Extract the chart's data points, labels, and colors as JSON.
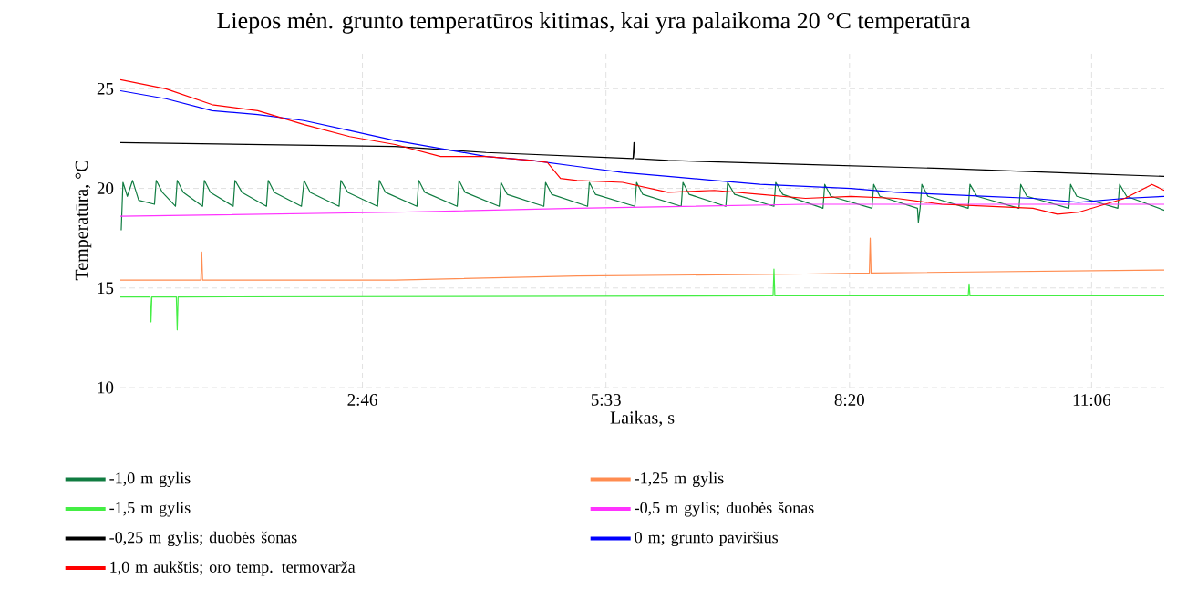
{
  "chart_data": {
    "type": "line",
    "title": "Liepos mėn. grunto temperatūros kitimas, kai yra palaikoma 20 °C temperatūra",
    "xlabel": "Laikas, s",
    "ylabel": "Temperatūra, °C",
    "xlim": [
      0,
      11.93
    ],
    "ylim": [
      10,
      26.8
    ],
    "xticks": [
      {
        "value": 2.7667,
        "label": "2:46"
      },
      {
        "value": 5.55,
        "label": "5:33"
      },
      {
        "value": 8.3333,
        "label": "8:20"
      },
      {
        "value": 11.1,
        "label": "11:06"
      }
    ],
    "yticks": [
      10,
      15,
      20,
      25
    ],
    "grid": true,
    "legend": "bottom",
    "series": [
      {
        "name": "-1,0 m gylis",
        "color": "#107c41",
        "x": [
          0.01,
          0.03,
          0.08,
          0.14,
          0.21,
          0.39,
          0.41,
          0.48,
          0.63,
          0.65,
          0.72,
          0.94,
          0.96,
          1.03,
          1.29,
          1.31,
          1.39,
          1.67,
          1.69,
          1.76,
          2.07,
          2.1,
          2.17,
          2.5,
          2.52,
          2.6,
          2.94,
          2.96,
          3.03,
          3.39,
          3.41,
          3.48,
          3.85,
          3.87,
          3.94,
          4.33,
          4.35,
          4.42,
          4.84,
          4.86,
          4.93,
          5.34,
          5.36,
          5.43,
          5.88,
          5.9,
          5.97,
          6.41,
          6.43,
          6.5,
          6.92,
          6.94,
          7.02,
          7.47,
          7.49,
          7.57,
          8.03,
          8.05,
          8.12,
          8.59,
          8.61,
          8.68,
          9.11,
          9.12,
          9.14,
          9.16,
          9.23,
          9.69,
          9.71,
          9.79,
          10.27,
          10.29,
          10.36,
          10.84,
          10.86,
          10.93,
          11.4,
          11.42,
          11.5,
          11.93
        ],
        "values": [
          17.9,
          20.3,
          19.6,
          20.4,
          19.4,
          19.2,
          20.4,
          19.8,
          19.1,
          20.4,
          19.8,
          19.1,
          20.4,
          19.8,
          19.1,
          20.4,
          19.8,
          19.1,
          20.4,
          19.8,
          19.1,
          20.4,
          19.8,
          19.1,
          20.4,
          19.8,
          19.1,
          20.4,
          19.8,
          19.1,
          20.4,
          19.8,
          19.1,
          20.4,
          19.8,
          19.1,
          20.3,
          19.7,
          19.1,
          20.3,
          19.7,
          19.1,
          20.3,
          19.7,
          19.1,
          20.3,
          19.7,
          19.1,
          20.3,
          19.7,
          19.1,
          20.3,
          19.7,
          19.1,
          20.3,
          19.7,
          19.0,
          20.2,
          19.6,
          19.0,
          20.2,
          19.6,
          19.0,
          18.3,
          19.0,
          20.2,
          19.6,
          19.0,
          20.2,
          19.6,
          19.0,
          20.2,
          19.6,
          19.0,
          20.2,
          19.6,
          19.0,
          20.2,
          19.6,
          18.9
        ]
      },
      {
        "name": "-1,25 m gylis",
        "color": "#ff8c50",
        "x": [
          0,
          0.92,
          0.93,
          0.94,
          3.14,
          5.22,
          7.83,
          8.56,
          8.57,
          8.58,
          11.93
        ],
        "values": [
          15.4,
          15.4,
          16.8,
          15.4,
          15.4,
          15.6,
          15.7,
          15.75,
          17.5,
          15.75,
          15.9
        ]
      },
      {
        "name": "-1,5 m gylis",
        "color": "#44ee44",
        "x": [
          0,
          0.34,
          0.35,
          0.36,
          0.64,
          0.65,
          0.66,
          7.46,
          7.47,
          7.48,
          9.69,
          9.7,
          9.71,
          11.93
        ],
        "values": [
          14.55,
          14.55,
          13.3,
          14.55,
          14.55,
          12.9,
          14.55,
          14.6,
          15.95,
          14.6,
          14.6,
          15.2,
          14.6,
          14.6
        ]
      },
      {
        "name": "-0,5 m gylis; duobės šonas",
        "color": "#ff33ff",
        "x": [
          0,
          3.14,
          5.22,
          7.83,
          11.93
        ],
        "values": [
          18.6,
          18.8,
          19.0,
          19.2,
          19.2
        ]
      },
      {
        "name": "-0,25 m gylis; duobės šonas",
        "color": "#000000",
        "x": [
          0,
          3.14,
          4.18,
          5.86,
          5.87,
          5.88,
          6.26,
          7.83,
          9.39,
          10.95,
          11.93
        ],
        "values": [
          22.3,
          22.1,
          21.8,
          21.5,
          22.3,
          21.5,
          21.4,
          21.2,
          21.0,
          20.75,
          20.6
        ]
      },
      {
        "name": "0 m; grunto paviršius",
        "color": "#0000ff",
        "x": [
          0,
          0.52,
          1.05,
          1.57,
          2.1,
          2.62,
          3.14,
          3.66,
          4.18,
          4.7,
          5.22,
          5.74,
          6.26,
          6.79,
          7.31,
          7.83,
          8.35,
          8.87,
          9.39,
          9.91,
          10.43,
          10.95,
          11.48,
          11.93
        ],
        "values": [
          24.9,
          24.5,
          23.9,
          23.7,
          23.4,
          22.9,
          22.4,
          22.0,
          21.6,
          21.4,
          21.1,
          20.8,
          20.6,
          20.4,
          20.2,
          20.1,
          20.0,
          19.8,
          19.7,
          19.6,
          19.5,
          19.3,
          19.5,
          19.6
        ]
      },
      {
        "name": "1,0 m aukštis; oro temp. termovarža",
        "color": "#ff0000",
        "x": [
          0,
          0.52,
          1.05,
          1.57,
          2.1,
          2.62,
          3.14,
          3.66,
          4.18,
          4.7,
          4.88,
          5.03,
          5.22,
          5.74,
          6.26,
          6.79,
          7.31,
          7.83,
          8.35,
          8.87,
          9.39,
          9.91,
          10.43,
          10.71,
          10.95,
          11.48,
          11.79,
          11.93
        ],
        "values": [
          25.46,
          25.0,
          24.2,
          23.9,
          23.2,
          22.6,
          22.2,
          21.6,
          21.6,
          21.4,
          21.3,
          20.5,
          20.4,
          20.3,
          19.8,
          19.9,
          19.7,
          19.5,
          19.6,
          19.5,
          19.2,
          19.1,
          19.0,
          18.7,
          18.8,
          19.5,
          20.2,
          19.9
        ]
      }
    ]
  }
}
